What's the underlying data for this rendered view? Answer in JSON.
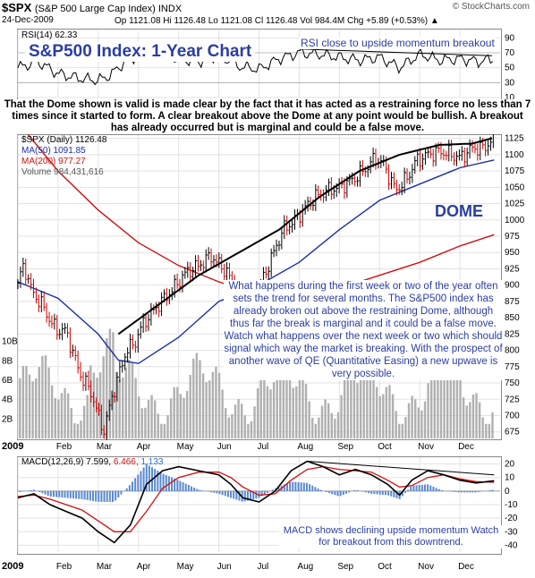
{
  "header": {
    "symbol": "$SPX",
    "name": "(S&P 500 Large Cap Index) INDX",
    "date": "24-Dec-2009",
    "quote": "Op 1121.08  Hi 1126.48  Lo 1121.08  Cl 1126.48  Vol 984.4M  Chg +5.89 (+0.53%) ▲",
    "credit": "© StockCharts.com"
  },
  "annotations": {
    "title": "S&P500 Index: 1-Year Chart",
    "rsi_note": "RSI close to upside momentum breakout",
    "dome_paragraph": "That the Dome shown is valid is made clear by the fact that it has acted as a restraining force no less than 7 times since it started to form. A clear breakout above the Dome at any point would be bullish. A breakout has already occurred but is marginal and could be a false move.",
    "dome_label": "DOME",
    "mid_note": "What happens during the first week or two of the year often sets the trend for several months. The S&P500 index has already broken out above the restraining Dome, although thus far the break is marginal and it could be a false move. Watch what happens over the next week or two which should signal which way the market is breaking. With the prospect of another wave of QE (Quantitative Easing) a new upwave is very possible.",
    "macd_note": "MACD shows declining upside momentum Watch for breakout from this downtrend."
  },
  "legends": {
    "rsi": "RSI(14) 62.33",
    "price": "$SPX (Daily) 1126.48",
    "ma50": "MA(50) 1091.85",
    "ma200": "MA(200) 977.27",
    "volume": "Volume 984,431,616",
    "macd_label": "MACD(12,26,9)",
    "macd_v1": "7.599,",
    "macd_v2": "6.466,",
    "macd_v3": "1.133"
  },
  "colors": {
    "accent": "#2b3ea0",
    "ma50": "#1c2fa8",
    "ma200": "#d01010",
    "volume": "#b0b0b0",
    "macd_hist": "#5a8ad0",
    "up": "#000000",
    "down": "#cc0000"
  },
  "chart_data": [
    {
      "type": "line",
      "panel": "rsi",
      "ylim": [
        10,
        100
      ],
      "yticks": [
        10,
        30,
        50,
        70,
        90
      ],
      "months": [
        "2009",
        "Feb",
        "Mar",
        "Apr",
        "May",
        "Jun",
        "Jul",
        "Aug",
        "Sep",
        "Oct",
        "Nov",
        "Dec"
      ],
      "series": [
        {
          "name": "RSI(14)",
          "x": [
            0,
            0.5,
            1,
            1.5,
            2,
            2.3,
            2.6,
            3,
            3.5,
            4,
            4.5,
            5,
            5.5,
            6,
            6.5,
            7,
            7.5,
            8,
            8.5,
            9,
            9.5,
            10,
            10.5,
            11,
            11.5,
            11.8
          ],
          "values": [
            50,
            58,
            42,
            36,
            33,
            40,
            55,
            68,
            64,
            62,
            58,
            68,
            52,
            48,
            62,
            70,
            68,
            64,
            60,
            64,
            50,
            68,
            60,
            62,
            58,
            62
          ]
        }
      ],
      "trendline": {
        "x": [
          7,
          11.8
        ],
        "values": [
          75,
          66
        ]
      }
    },
    {
      "type": "line",
      "panel": "price",
      "ylim": [
        665,
        1130
      ],
      "yticks": [
        675,
        700,
        725,
        750,
        775,
        800,
        825,
        850,
        875,
        900,
        925,
        950,
        975,
        1000,
        1025,
        1050,
        1075,
        1100,
        1125
      ],
      "months": [
        "2009",
        "Feb",
        "Mar",
        "Apr",
        "May",
        "Jun",
        "Jul",
        "Aug",
        "Sep",
        "Oct",
        "Nov",
        "Dec"
      ],
      "series": [
        {
          "name": "$SPX (Daily)",
          "x": [
            0,
            0.15,
            0.35,
            0.6,
            0.85,
            1.0,
            1.2,
            1.4,
            1.6,
            1.8,
            2.0,
            2.15,
            2.3,
            2.5,
            2.7,
            2.9,
            3.1,
            3.3,
            3.5,
            3.8,
            4.0,
            4.2,
            4.5,
            4.8,
            5.0,
            5.2,
            5.4,
            5.6,
            5.8,
            6.0,
            6.3,
            6.6,
            6.9,
            7.1,
            7.4,
            7.7,
            8.0,
            8.3,
            8.6,
            8.9,
            9.1,
            9.4,
            9.7,
            9.9,
            10.2,
            10.5,
            10.8,
            11.0,
            11.3,
            11.6,
            11.85
          ],
          "values": [
            903,
            931,
            890,
            870,
            840,
            830,
            830,
            790,
            756,
            740,
            700,
            676,
            720,
            760,
            800,
            810,
            840,
            855,
            870,
            890,
            905,
            920,
            930,
            945,
            932,
            920,
            895,
            880,
            870,
            895,
            940,
            985,
            1000,
            1015,
            1035,
            1045,
            1050,
            1060,
            1075,
            1095,
            1085,
            1045,
            1065,
            1090,
            1100,
            1105,
            1100,
            1095,
            1110,
            1110,
            1126.48
          ]
        },
        {
          "name": "MA(50)",
          "x": [
            0,
            1,
            2,
            2.5,
            3,
            4,
            5,
            6,
            7,
            8,
            9,
            10,
            11,
            11.85
          ],
          "values": [
            905,
            880,
            825,
            785,
            780,
            820,
            875,
            900,
            935,
            985,
            1030,
            1055,
            1080,
            1091.85
          ]
        },
        {
          "name": "MA(200)",
          "x": [
            0,
            1,
            2,
            3,
            4,
            5,
            5.5,
            6,
            7,
            8,
            9,
            10,
            11,
            11.85
          ],
          "values": [
            1150,
            1075,
            1015,
            965,
            930,
            905,
            895,
            880,
            880,
            895,
            915,
            935,
            960,
            977.27
          ]
        }
      ],
      "dome": {
        "x": [
          2.5,
          3.5,
          4.5,
          5.5,
          6.5,
          7.5,
          8.5,
          9.5,
          10.5,
          11.3,
          11.85
        ],
        "values": [
          825,
          870,
          915,
          950,
          985,
          1035,
          1075,
          1100,
          1115,
          1117,
          1126
        ]
      }
    },
    {
      "type": "bar",
      "panel": "volume",
      "yticks_label": [
        "2B",
        "4B",
        "6B",
        "8B",
        "10B"
      ],
      "ylim": [
        0,
        12
      ]
    },
    {
      "type": "line",
      "panel": "macd",
      "ylim": [
        -45,
        25
      ],
      "yticks": [
        -40,
        -30,
        -20,
        -10,
        0,
        10,
        20
      ],
      "months": [
        "2009",
        "Feb",
        "Mar",
        "Apr",
        "May",
        "Jun",
        "Jul",
        "Aug",
        "Sep",
        "Oct",
        "Nov",
        "Dec"
      ],
      "series": [
        {
          "name": "MACD",
          "x": [
            0,
            0.4,
            0.8,
            1.2,
            1.6,
            2.0,
            2.4,
            2.8,
            3.2,
            3.6,
            4.0,
            4.5,
            5.0,
            5.3,
            5.6,
            6.0,
            6.4,
            6.8,
            7.2,
            7.6,
            8.0,
            8.4,
            8.8,
            9.2,
            9.5,
            9.8,
            10.2,
            10.6,
            11.0,
            11.4,
            11.85
          ],
          "values": [
            -5,
            -2,
            -10,
            -15,
            -20,
            -30,
            -38,
            -25,
            5,
            15,
            18,
            15,
            12,
            5,
            -5,
            -8,
            0,
            15,
            22,
            18,
            12,
            16,
            12,
            5,
            -3,
            8,
            15,
            12,
            8,
            6,
            7.6
          ]
        },
        {
          "name": "Signal",
          "x": [
            0,
            0.4,
            0.8,
            1.2,
            1.6,
            2.0,
            2.4,
            2.8,
            3.2,
            3.6,
            4.0,
            4.5,
            5.0,
            5.3,
            5.6,
            6.0,
            6.4,
            6.8,
            7.2,
            7.6,
            8.0,
            8.4,
            8.8,
            9.2,
            9.5,
            9.8,
            10.2,
            10.6,
            11.0,
            11.4,
            11.85
          ],
          "values": [
            -4,
            -3,
            -6,
            -10,
            -14,
            -22,
            -30,
            -30,
            -15,
            2,
            10,
            14,
            14,
            10,
            3,
            -3,
            -2,
            8,
            16,
            18,
            16,
            15,
            14,
            8,
            3,
            4,
            10,
            12,
            9,
            7,
            6.5
          ]
        }
      ],
      "trendline": {
        "x": [
          7.2,
          11.85
        ],
        "values": [
          22,
          12
        ]
      }
    }
  ]
}
